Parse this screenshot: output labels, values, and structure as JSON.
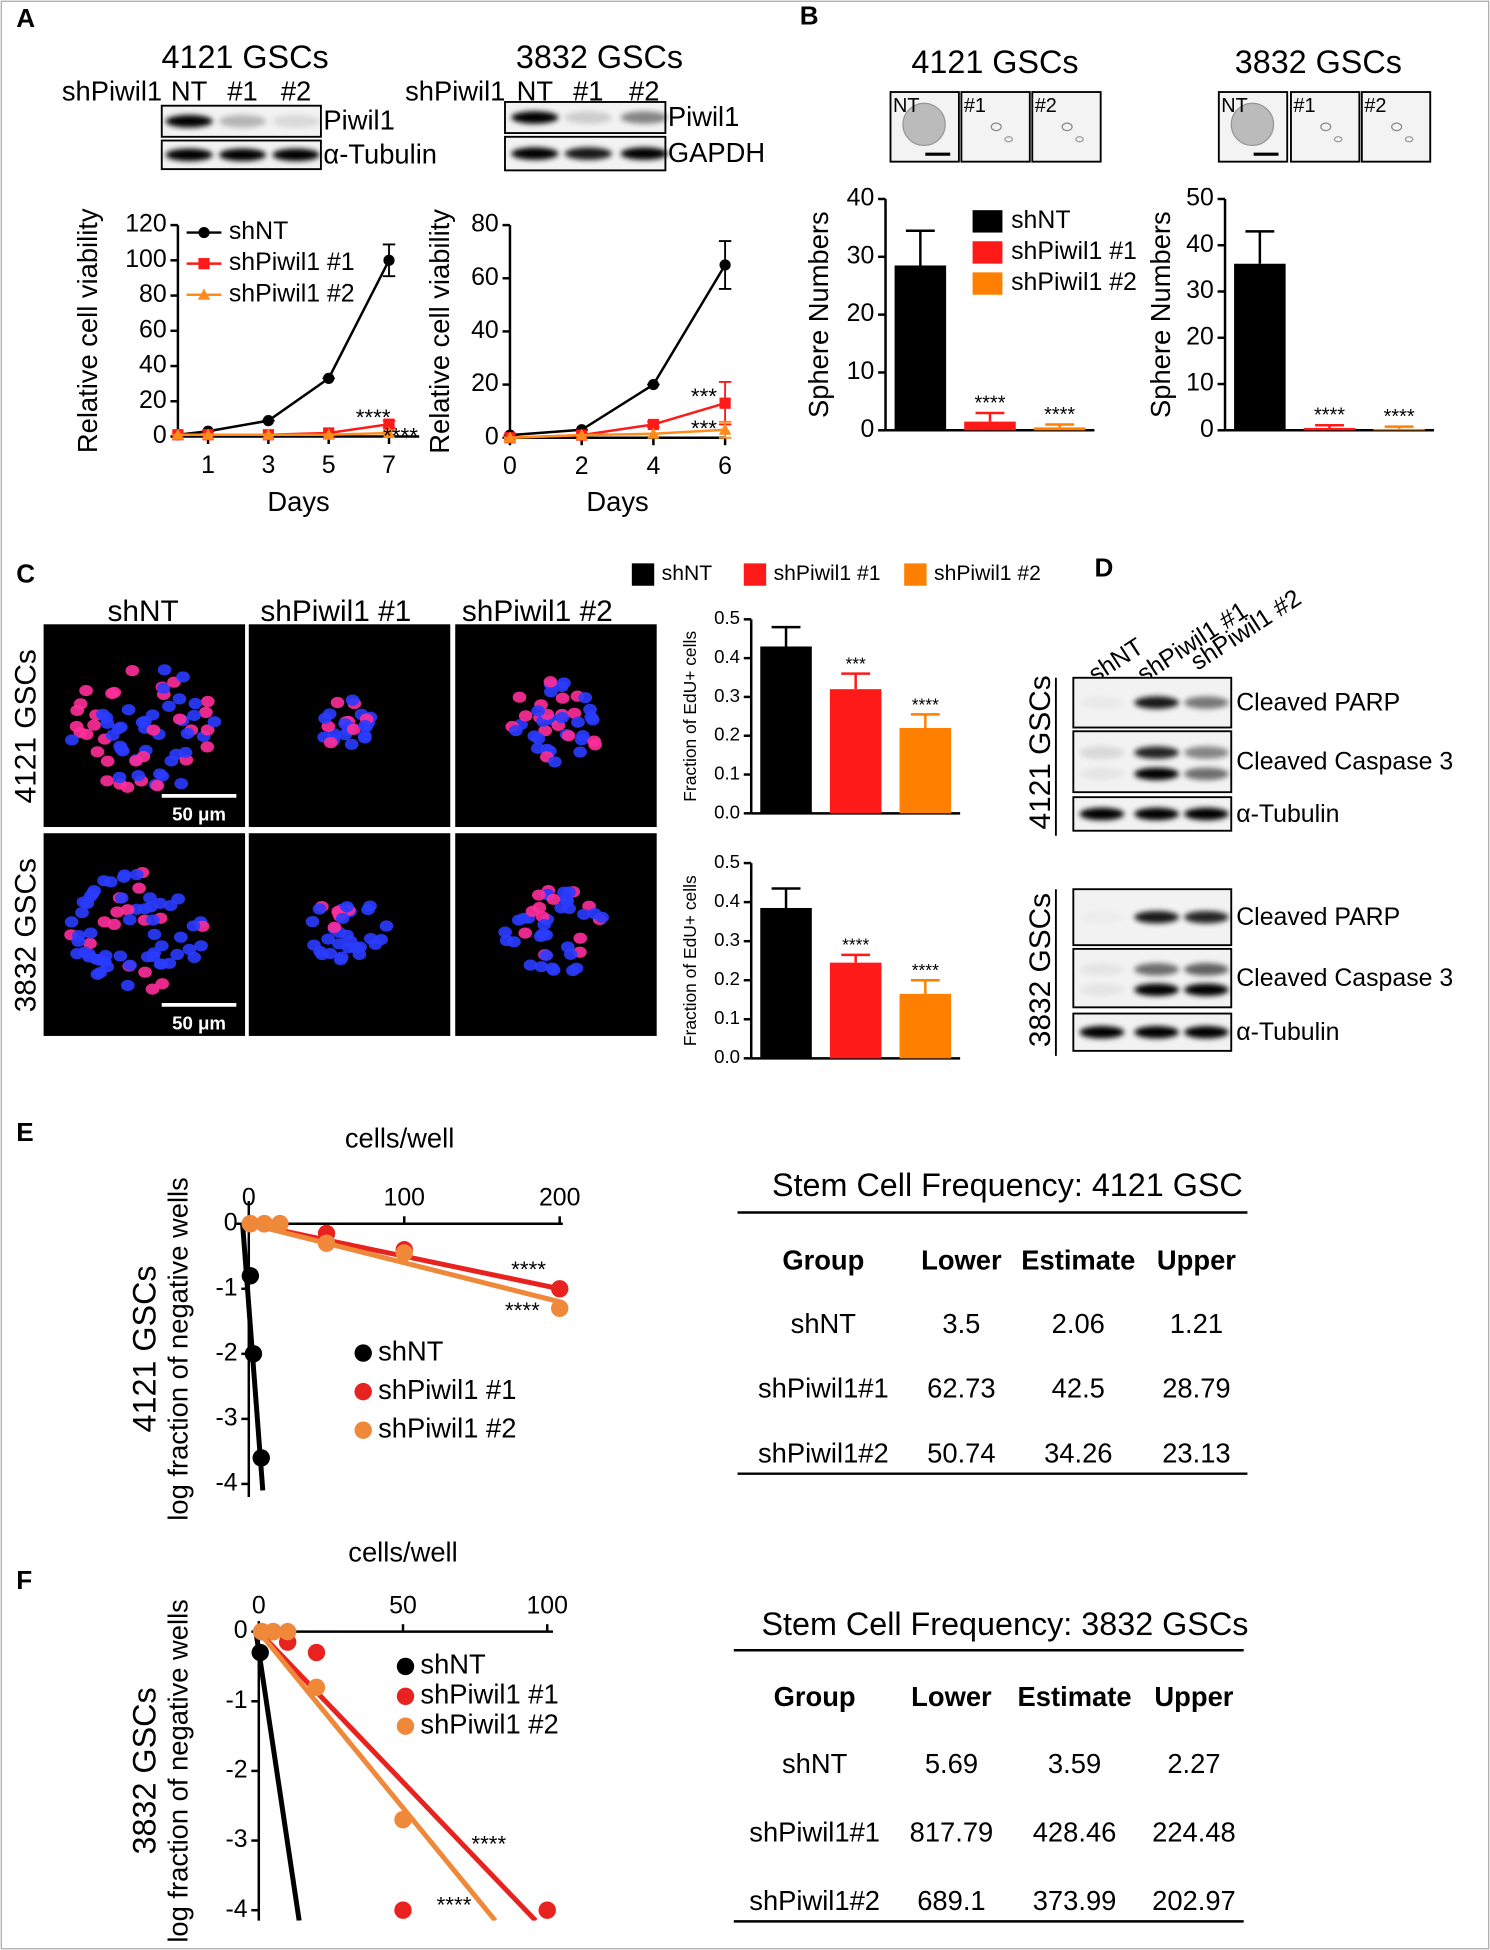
{
  "panel_labels": [
    "A",
    "B",
    "C",
    "D",
    "E",
    "F"
  ],
  "blots_a": [
    {
      "title": "4121 GSCs",
      "lane_header": "shPiwil1",
      "lanes": [
        "NT",
        "#1",
        "#2"
      ],
      "rows": [
        "Piwil1",
        "α-Tubulin"
      ]
    },
    {
      "title": "3832 GSCs",
      "lane_header": "shPiwil1",
      "lanes": [
        "NT",
        "#1",
        "#2"
      ],
      "rows": [
        "Piwil1",
        "GAPDH"
      ]
    }
  ],
  "spheres": [
    {
      "title": "4121 GSCs",
      "lanes": [
        "NT",
        "#1",
        "#2"
      ]
    },
    {
      "title": "3832 GSCs",
      "lanes": [
        "NT",
        "#1",
        "#2"
      ]
    }
  ],
  "edu_images": {
    "columns": [
      "shNT",
      "shPiwil1 #1",
      "shPiwil1 #2"
    ],
    "rows": [
      "4121 GSCs",
      "3832 GSCs"
    ],
    "scale_bar": "50 μm"
  },
  "blot_d": {
    "lanes": [
      "shNT",
      "shPiwil1 #1",
      "shPiwil1 #2"
    ],
    "groups": [
      {
        "name": "4121 GSCs",
        "rows": [
          "Cleaved PARP",
          "Cleaved Caspase 3",
          "α-Tubulin"
        ]
      },
      {
        "name": "3832 GSCs",
        "rows": [
          "Cleaved PARP",
          "Cleaved Caspase 3",
          "α-Tubulin"
        ]
      }
    ]
  },
  "chart_data": [
    {
      "type": "line",
      "xlabel": "Days",
      "ylabel": "Relative cell viability",
      "x": [
        0,
        1,
        3,
        5,
        7
      ],
      "xlim": [
        0,
        8
      ],
      "xticks": [
        1,
        3,
        5,
        7
      ],
      "ylim": [
        0,
        120
      ],
      "yticks": [
        0,
        20,
        40,
        60,
        80,
        100,
        120
      ],
      "legend": "upper left",
      "series": [
        {
          "name": "shNT",
          "color": "#000000",
          "marker": "circle",
          "values": [
            1,
            3,
            9,
            33,
            100
          ],
          "errors": [
            0,
            0,
            0,
            0,
            9
          ]
        },
        {
          "name": "shPiwil1 #1",
          "color": "#ff1a1a",
          "marker": "square",
          "values": [
            1,
            1,
            1,
            2,
            7
          ],
          "errors": [
            0,
            0,
            0,
            0,
            2
          ],
          "annotation": "****"
        },
        {
          "name": "shPiwil1 #2",
          "color": "#ff8c1a",
          "marker": "triangle",
          "values": [
            1,
            1,
            1,
            1,
            2
          ],
          "errors": [
            0,
            0,
            0,
            0,
            1
          ],
          "annotation": "****"
        }
      ]
    },
    {
      "type": "line",
      "xlabel": "Days",
      "ylabel": "Relative cell viability",
      "x": [
        0,
        2,
        4,
        6
      ],
      "xlim": [
        0,
        6
      ],
      "xticks": [
        0,
        2,
        4,
        6
      ],
      "ylim": [
        0,
        80
      ],
      "yticks": [
        0,
        20,
        40,
        60,
        80
      ],
      "series": [
        {
          "color": "#000000",
          "marker": "circle",
          "values": [
            1,
            3,
            20,
            65
          ],
          "errors": [
            0,
            0,
            0,
            9
          ]
        },
        {
          "color": "#ff1a1a",
          "marker": "square",
          "values": [
            0,
            1,
            5,
            13
          ],
          "errors": [
            0,
            0,
            1,
            8
          ],
          "annotation": "***"
        },
        {
          "color": "#ff8c1a",
          "marker": "triangle",
          "values": [
            0,
            1,
            1.5,
            3
          ],
          "errors": [
            0,
            0,
            0,
            3
          ],
          "annotation": "***"
        }
      ]
    },
    {
      "type": "bar",
      "ylabel": "Sphere Numbers",
      "ylim": [
        0,
        40
      ],
      "yticks": [
        0,
        10,
        20,
        30,
        40
      ],
      "legend": "upper right",
      "series": [
        {
          "name": "shNT",
          "color": "#000000",
          "values": [
            28.5
          ],
          "errors": [
            6
          ]
        },
        {
          "name": "shPiwil1 #1",
          "color": "#ff1a1a",
          "values": [
            1.5
          ],
          "errors": [
            1.5
          ],
          "annotation": "****"
        },
        {
          "name": "shPiwil1 #2",
          "color": "#ff8000",
          "values": [
            0.5
          ],
          "errors": [
            0.5
          ],
          "annotation": "****"
        }
      ]
    },
    {
      "type": "bar",
      "ylabel": "Sphere Numbers",
      "ylim": [
        0,
        50
      ],
      "yticks": [
        0,
        10,
        20,
        30,
        40,
        50
      ],
      "series": [
        {
          "color": "#000000",
          "values": [
            36
          ],
          "errors": [
            7
          ]
        },
        {
          "color": "#ff1a1a",
          "values": [
            0.5
          ],
          "errors": [
            0.6
          ],
          "annotation": "****"
        },
        {
          "color": "#ff8000",
          "values": [
            0.3
          ],
          "errors": [
            0.5
          ],
          "annotation": "****"
        }
      ]
    },
    {
      "type": "bar",
      "ylabel": "Fraction of EdU+ cells",
      "ylim": [
        0,
        0.5
      ],
      "yticks": [
        {
          "value": 0,
          "label": "0.0"
        },
        0.1,
        0.2,
        0.3,
        0.4,
        0.5
      ],
      "legend": "top",
      "series": [
        {
          "name": "shNT",
          "color": "#000000",
          "values": [
            0.43
          ],
          "errors": [
            0.05
          ]
        },
        {
          "name": "shPiwil1 #1",
          "color": "#ff1a1a",
          "values": [
            0.32
          ],
          "errors": [
            0.04
          ],
          "annotation": "***"
        },
        {
          "name": "shPiwil1 #2",
          "color": "#ff8000",
          "values": [
            0.22
          ],
          "errors": [
            0.035
          ],
          "annotation": "****"
        }
      ]
    },
    {
      "type": "bar",
      "ylabel": "Fraction of EdU+ cells",
      "ylim": [
        0,
        0.5
      ],
      "yticks": [
        {
          "value": 0,
          "label": "0.0"
        },
        0.1,
        0.2,
        0.3,
        0.4,
        0.5
      ],
      "series": [
        {
          "color": "#000000",
          "values": [
            0.385
          ],
          "errors": [
            0.05
          ]
        },
        {
          "color": "#ff1a1a",
          "values": [
            0.245
          ],
          "errors": [
            0.02
          ],
          "annotation": "****"
        },
        {
          "color": "#ff8000",
          "values": [
            0.165
          ],
          "errors": [
            0.035
          ],
          "annotation": "****"
        }
      ]
    },
    {
      "type": "scatter",
      "title": "4121 GSCs",
      "xlabel": "cells/well",
      "ylabel": "log fraction of negative wells",
      "xlim": [
        -8,
        202
      ],
      "xticks": [
        0,
        100,
        200
      ],
      "ylim": [
        -4.2,
        0.35
      ],
      "yticks": [
        0,
        -1,
        -2,
        -3,
        -4
      ],
      "legend": "center",
      "series": [
        {
          "name": "shNT",
          "color": "#000000",
          "x": [
            1,
            3,
            8
          ],
          "values": [
            -0.8,
            -2,
            -3.6
          ],
          "fit_x": [
            -4,
            9
          ],
          "fit_y": [
            0,
            -4.1
          ]
        },
        {
          "name": "shPiwil1 #1",
          "color": "#e8231f",
          "x": [
            1,
            10,
            20,
            50,
            100,
            200
          ],
          "values": [
            0,
            0,
            0,
            -0.15,
            -0.4,
            -1.0
          ],
          "fit_x": [
            0,
            200
          ],
          "fit_y": [
            0,
            -1.0
          ],
          "annotation": "****"
        },
        {
          "name": "shPiwil1 #2",
          "color": "#f0883a",
          "x": [
            1,
            10,
            20,
            50,
            100,
            200
          ],
          "values": [
            0,
            0,
            0,
            -0.3,
            -0.45,
            -1.3
          ],
          "fit_x": [
            0,
            200
          ],
          "fit_y": [
            0,
            -1.2
          ],
          "annotation": "****"
        }
      ]
    },
    {
      "type": "scatter",
      "title": "3832 GSCs",
      "xlabel": "cells/well",
      "ylabel": "log fraction of negative wells",
      "xlim": [
        -2,
        102
      ],
      "xticks": [
        0,
        50,
        100
      ],
      "ylim": [
        -4.15,
        0.15
      ],
      "yticks": [
        0,
        -1,
        -2,
        -3,
        -4
      ],
      "legend": "upper right",
      "series": [
        {
          "name": "shNT",
          "color": "#000000",
          "x": [
            0.5
          ],
          "values": [
            -0.3
          ],
          "fit_x": [
            -1,
            14
          ],
          "fit_y": [
            0,
            -4.15
          ]
        },
        {
          "name": "shPiwil1 #1",
          "color": "#e8231f",
          "x": [
            1,
            5,
            10,
            20,
            50,
            100
          ],
          "values": [
            0,
            0,
            -0.15,
            -0.3,
            -4.0,
            -4.0
          ],
          "fit_x": [
            0,
            96
          ],
          "fit_y": [
            0,
            -4.15
          ],
          "annotation": "****"
        },
        {
          "name": "shPiwil1 #2",
          "color": "#f0883a",
          "x": [
            1,
            5,
            10,
            20,
            50
          ],
          "values": [
            0,
            0,
            0,
            -0.8,
            -2.7
          ],
          "fit_x": [
            0,
            82
          ],
          "fit_y": [
            0,
            -4.15
          ],
          "annotation": "****"
        }
      ]
    }
  ],
  "tables": [
    {
      "title": "Stem Cell Frequency: 4121 GSC",
      "header": [
        "Group",
        "Lower",
        "Estimate",
        "Upper"
      ],
      "rows": [
        [
          "shNT",
          3.5,
          2.06,
          1.21
        ],
        [
          "shPiwil1#1",
          62.73,
          42.5,
          28.79
        ],
        [
          "shPiwil1#2",
          50.74,
          34.26,
          23.13
        ]
      ]
    },
    {
      "title": "Stem Cell Frequency: 3832 GSCs",
      "header": [
        "Group",
        "Lower",
        "Estimate",
        "Upper"
      ],
      "rows": [
        [
          "shNT",
          5.69,
          3.59,
          2.27
        ],
        [
          "shPiwil1#1",
          817.79,
          428.46,
          224.48
        ],
        [
          "shPiwil1#2",
          689.1,
          373.99,
          202.97
        ]
      ]
    }
  ]
}
